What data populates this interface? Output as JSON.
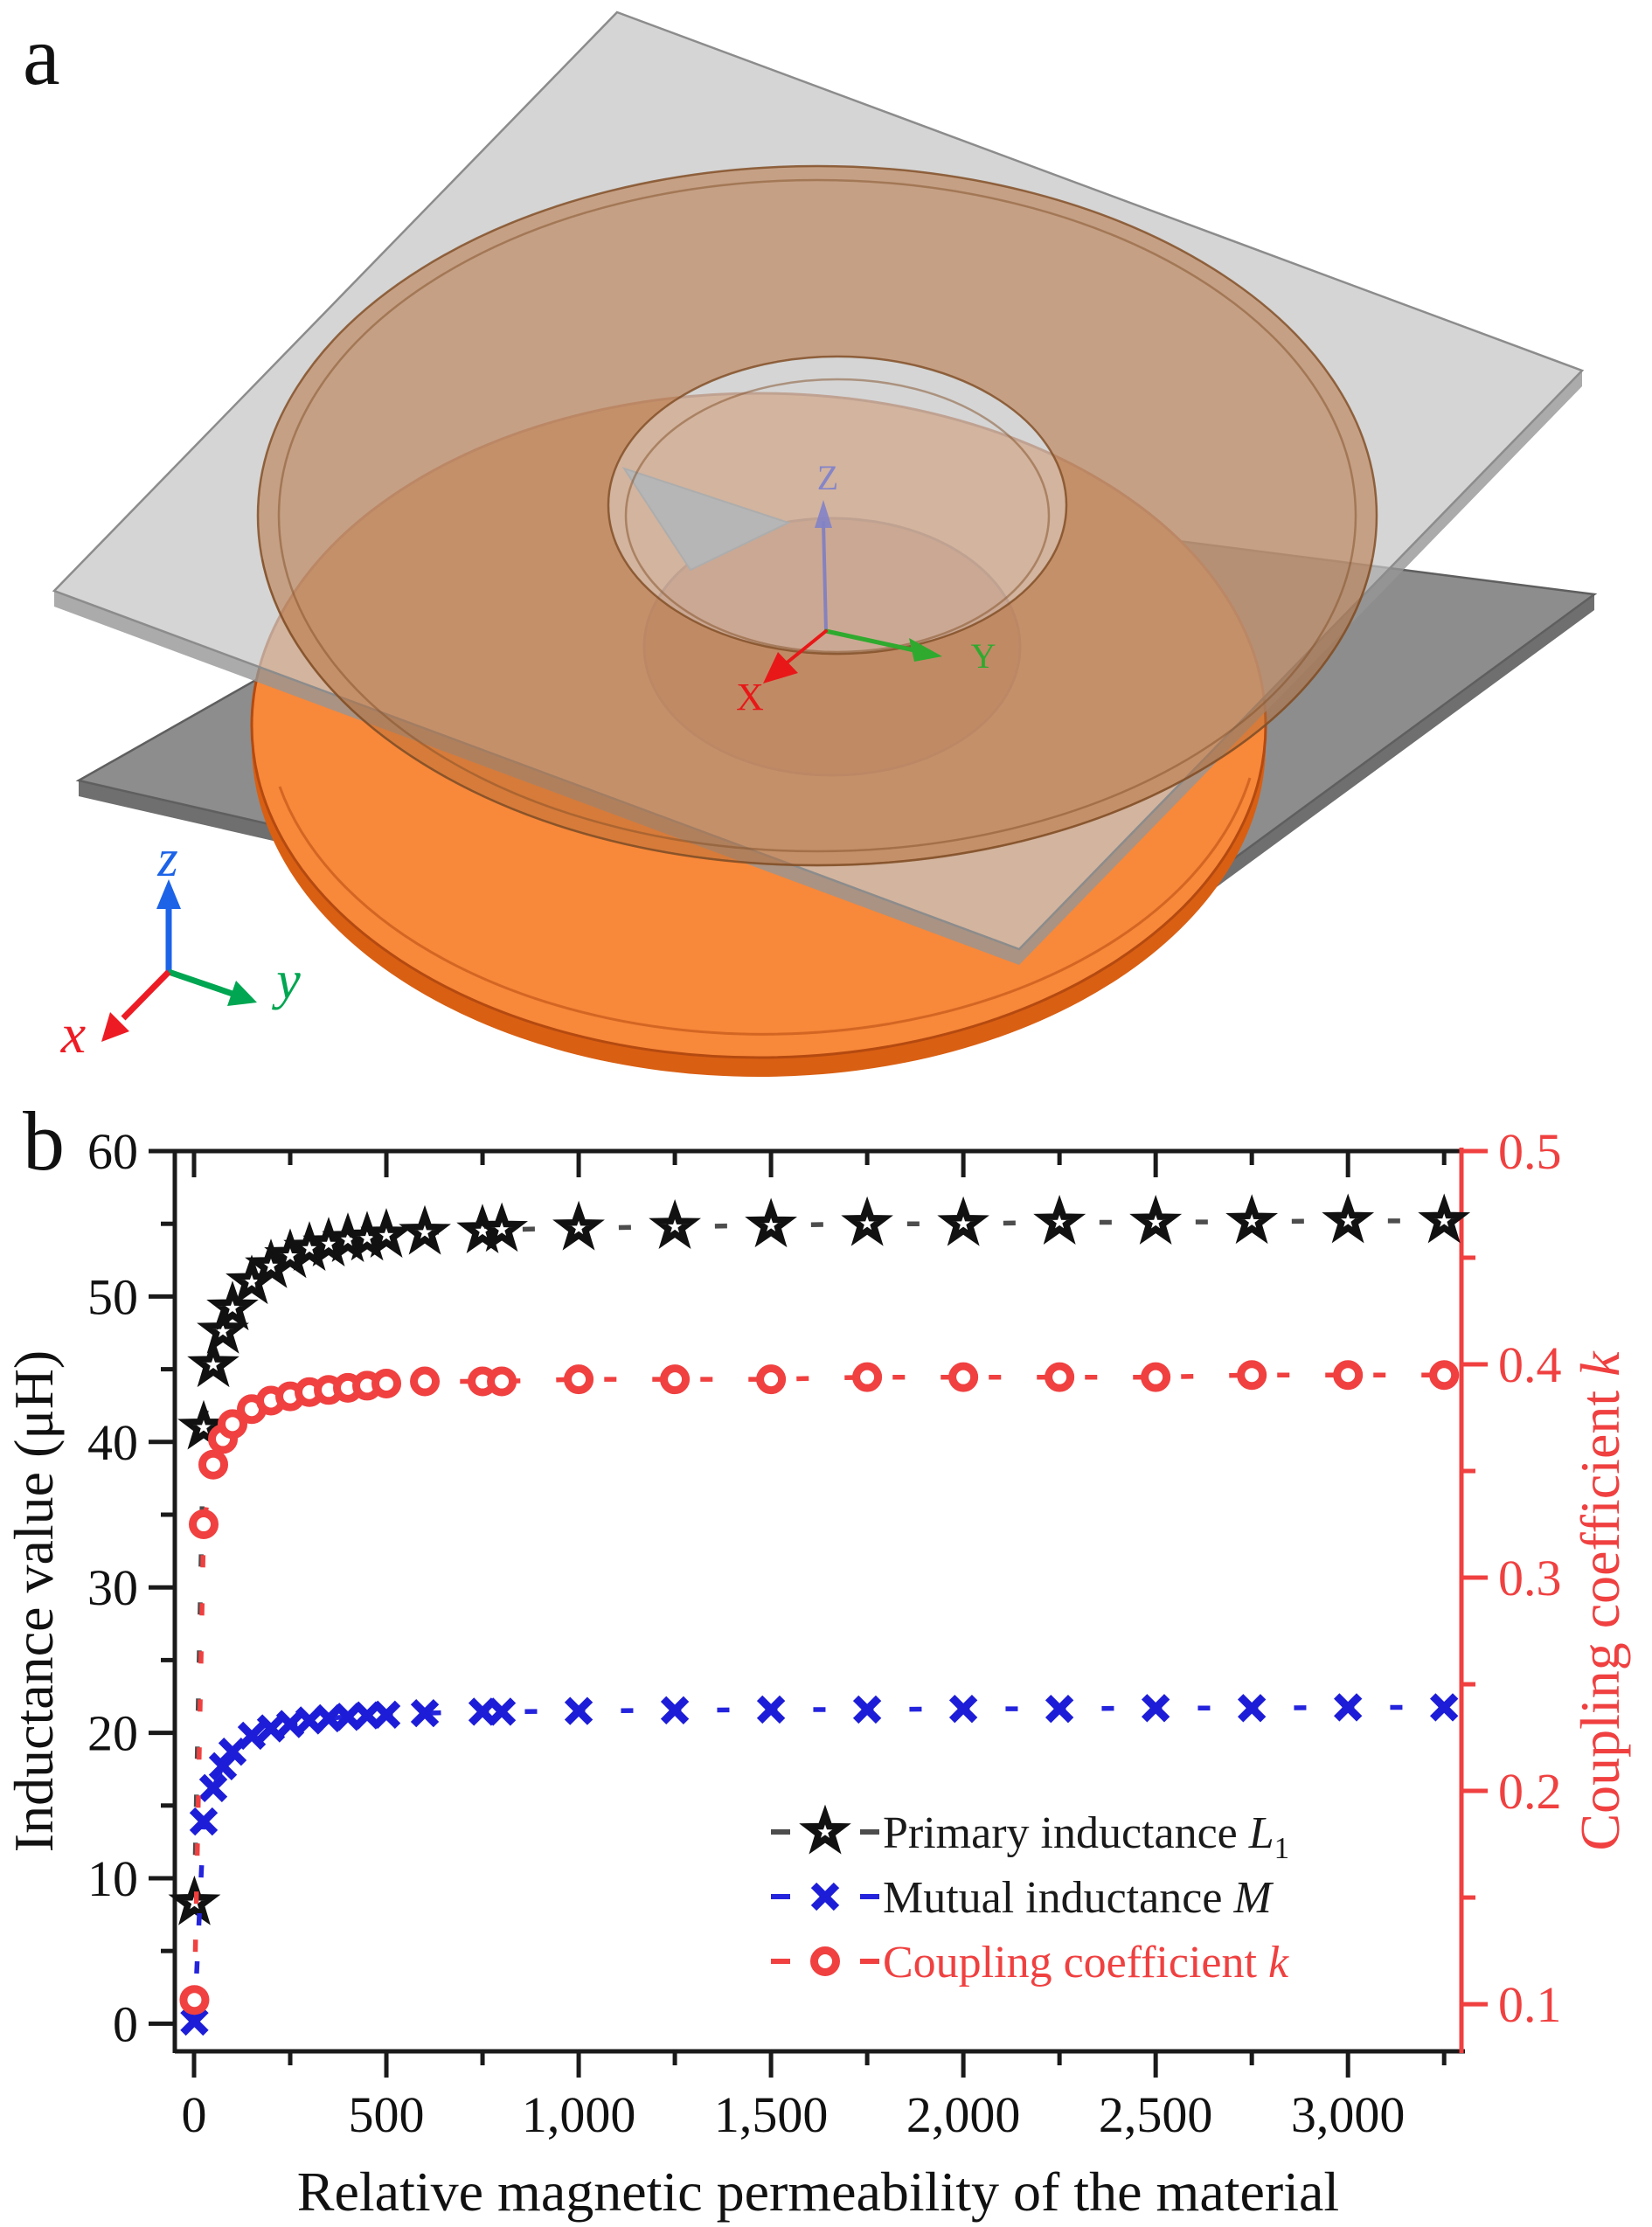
{
  "figure": {
    "panel_a": {
      "letter": "a",
      "description": "3D model of two parallel square plates, each carrying an annular spiral coil; upper assembly semi-transparent, lower plate with bright orange ring",
      "colors": {
        "top_plate": "#c6c6c6",
        "plate_edge": "#8c8c8c",
        "bottom_plate": "#8d8d8d",
        "bottom_plate_side": "#6f6f6f",
        "top_ring_copper": "#b9703c",
        "bottom_ring_orange": "#f8883a",
        "bottom_ring_side": "#d95f13"
      },
      "center_triad": {
        "x": {
          "label": "X",
          "color": "#e81818"
        },
        "y": {
          "label": "Y",
          "color": "#2faa2f"
        },
        "z": {
          "label": "Z",
          "color": "#8585c8"
        }
      },
      "corner_triad": {
        "x": {
          "label": "x",
          "color": "#ed1c24"
        },
        "y": {
          "label": "y",
          "color": "#00a651"
        },
        "z": {
          "label": "z",
          "color": "#1c63e8"
        }
      }
    },
    "panel_b": {
      "letter": "b",
      "chart_data": {
        "type": "scatter",
        "title": "",
        "xlabel": "Relative magnetic permeability of the material",
        "ylabel_left": "Inductance value (μH)",
        "ylabel_right_text": "Coupling coefficient ",
        "ylabel_right_var": "k",
        "xlim": [
          -50,
          3295
        ],
        "ylim_left": [
          -1.9,
          60
        ],
        "ylim_right": [
          0.0779,
          0.5
        ],
        "grid": false,
        "legend_position": "inside bottom-right",
        "axis_colors": {
          "left": "#1a1a1a",
          "bottom": "#1a1a1a",
          "top": "#1a1a1a",
          "right": "#f04040"
        },
        "axes": {
          "x": {
            "major_values": [
              0,
              500,
              1000,
              1500,
              2000,
              2500,
              3000
            ],
            "major_labels": [
              "0",
              "500",
              "1,000",
              "1,500",
              "2,000",
              "2,500",
              "3,000"
            ],
            "minor_values": [
              250,
              750,
              1250,
              1750,
              2250,
              2750,
              3250
            ]
          },
          "y_left": {
            "major_values": [
              0,
              10,
              20,
              30,
              40,
              50,
              60
            ],
            "major_labels": [
              "0",
              "10",
              "20",
              "30",
              "40",
              "50",
              "60"
            ],
            "minor_values": [
              5,
              15,
              25,
              35,
              45,
              55
            ]
          },
          "y_right": {
            "major_values": [
              0.1,
              0.2,
              0.3,
              0.4,
              0.5
            ],
            "major_labels": [
              "0.1",
              "0.2",
              "0.3",
              "0.4",
              "0.5"
            ],
            "minor_values": [
              0.15,
              0.25,
              0.35,
              0.45
            ]
          }
        },
        "x": [
          1,
          25,
          50,
          75,
          100,
          150,
          200,
          250,
          300,
          350,
          400,
          450,
          500,
          600,
          750,
          800,
          1000,
          1250,
          1500,
          1750,
          2000,
          2250,
          2500,
          2750,
          3000,
          3250
        ],
        "series": [
          {
            "name": "Primary inductance L1",
            "axis": "left",
            "marker": "star",
            "marker_color": "#111111",
            "line_color": "#4d4d4d",
            "values": [
              8.3,
              41.0,
              45.3,
              47.6,
              49.2,
              51.0,
              52.1,
              52.8,
              53.3,
              53.6,
              53.9,
              54.0,
              54.2,
              54.4,
              54.5,
              54.6,
              54.7,
              54.8,
              54.9,
              55.0,
              55.0,
              55.1,
              55.1,
              55.15,
              55.2,
              55.2
            ]
          },
          {
            "name": "Mutual inductance M",
            "axis": "left",
            "marker": "x",
            "marker_color": "#1d1dd8",
            "line_color": "#2424dd",
            "values": [
              0.15,
              13.9,
              16.2,
              17.7,
              18.7,
              19.8,
              20.3,
              20.6,
              20.85,
              21.0,
              21.1,
              21.2,
              21.25,
              21.35,
              21.45,
              21.45,
              21.5,
              21.55,
              21.6,
              21.6,
              21.65,
              21.65,
              21.7,
              21.7,
              21.75,
              21.75
            ]
          },
          {
            "name": "Coupling coefficient k",
            "axis": "right",
            "marker": "circle",
            "marker_color": "#f04040",
            "line_color": "#f04040",
            "values": [
              0.102,
              0.325,
              0.353,
              0.365,
              0.372,
              0.379,
              0.383,
              0.385,
              0.387,
              0.388,
              0.389,
              0.39,
              0.391,
              0.392,
              0.392,
              0.392,
              0.393,
              0.393,
              0.393,
              0.394,
              0.394,
              0.394,
              0.394,
              0.395,
              0.395,
              0.395
            ]
          }
        ],
        "legend": [
          {
            "marker": "star",
            "text": "Primary inductance ",
            "var": "L",
            "sub": "1",
            "text_color": "#1a1a1a"
          },
          {
            "marker": "x",
            "text": "Mutual inductance ",
            "var": "M",
            "sub": "",
            "text_color": "#1a1a1a"
          },
          {
            "marker": "circle",
            "text": "Coupling coefficient ",
            "var": "k",
            "sub": "",
            "text_color": "#f04040"
          }
        ]
      }
    }
  }
}
